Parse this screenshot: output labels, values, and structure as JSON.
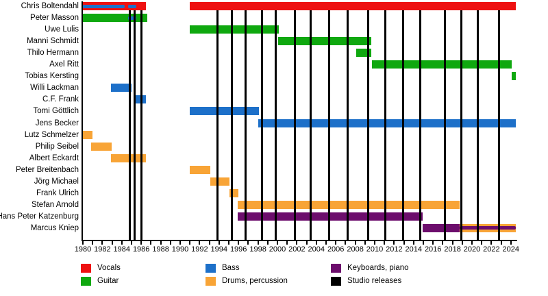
{
  "chart_data": {
    "type": "timeline",
    "description": "Band members timeline with studio release markers",
    "x_axis": {
      "start": 1980,
      "end": 2024.5,
      "minor_tick_step": 1,
      "label_step": 2,
      "tick_labels": [
        "1980",
        "1982",
        "1984",
        "1986",
        "1988",
        "1990",
        "1992",
        "1994",
        "1996",
        "1998",
        "2000",
        "2002",
        "2004",
        "2006",
        "2008",
        "2010",
        "2012",
        "2014",
        "2016",
        "2018",
        "2020",
        "2022",
        "2024"
      ]
    },
    "roles": {
      "vocals": {
        "label": "Vocals",
        "color": "#ee1111"
      },
      "guitar": {
        "label": "Guitar",
        "color": "#0fa80f"
      },
      "bass": {
        "label": "Bass",
        "color": "#1d70c9"
      },
      "drums": {
        "label": "Drums, percussion",
        "color": "#f8a436"
      },
      "keyboards": {
        "label": "Keyboards, piano",
        "color": "#6c0d6c"
      },
      "releases": {
        "label": "Studio releases",
        "color": "#000000"
      }
    },
    "members": [
      {
        "name": "Chris Boltendahl",
        "segments": [
          {
            "role": "vocals",
            "start": 1980,
            "end": 1986.5
          },
          {
            "role": "vocals",
            "start": 1991,
            "end": 2024.5
          }
        ],
        "overlays": [
          {
            "role": "bass",
            "start": 1980,
            "end": 1984.3
          },
          {
            "role": "bass",
            "start": 1984.65,
            "end": 1985.5
          }
        ]
      },
      {
        "name": "Peter Masson",
        "segments": [
          {
            "role": "guitar",
            "start": 1980,
            "end": 1986.6
          }
        ],
        "overlays": [
          {
            "role": "bass",
            "start": 1984.65,
            "end": 1985.5
          }
        ]
      },
      {
        "name": "Uwe Lulis",
        "segments": [
          {
            "role": "guitar",
            "start": 1991,
            "end": 2000.15
          }
        ],
        "overlays": []
      },
      {
        "name": "Manni Schmidt",
        "segments": [
          {
            "role": "guitar",
            "start": 2000.1,
            "end": 2009.65
          }
        ],
        "overlays": []
      },
      {
        "name": "Thilo Hermann",
        "segments": [
          {
            "role": "guitar",
            "start": 2008.1,
            "end": 2009.65
          }
        ],
        "overlays": []
      },
      {
        "name": "Axel Ritt",
        "segments": [
          {
            "role": "guitar",
            "start": 2009.7,
            "end": 2024.05
          }
        ],
        "overlays": []
      },
      {
        "name": "Tobias Kersting",
        "segments": [
          {
            "role": "guitar",
            "start": 2024.1,
            "end": 2024.5
          }
        ],
        "overlays": []
      },
      {
        "name": "Willi Lackman",
        "segments": [
          {
            "role": "bass",
            "start": 1982.9,
            "end": 1985.0
          }
        ],
        "overlays": []
      },
      {
        "name": "C.F. Frank",
        "segments": [
          {
            "role": "bass",
            "start": 1985.45,
            "end": 1986.5
          }
        ],
        "overlays": []
      },
      {
        "name": "Tomi Göttlich",
        "segments": [
          {
            "role": "bass",
            "start": 1991,
            "end": 1998.1
          }
        ],
        "overlays": []
      },
      {
        "name": "Jens Becker",
        "segments": [
          {
            "role": "bass",
            "start": 1998.05,
            "end": 2024.5
          }
        ],
        "overlays": []
      },
      {
        "name": "Lutz Schmelzer",
        "segments": [
          {
            "role": "drums",
            "start": 1980,
            "end": 1981
          }
        ],
        "overlays": []
      },
      {
        "name": "Philip Seibel",
        "segments": [
          {
            "role": "drums",
            "start": 1980.85,
            "end": 1982.95
          }
        ],
        "overlays": []
      },
      {
        "name": "Albert Eckardt",
        "segments": [
          {
            "role": "drums",
            "start": 1982.9,
            "end": 1986.5
          }
        ],
        "overlays": []
      },
      {
        "name": "Peter Breitenbach",
        "segments": [
          {
            "role": "drums",
            "start": 1991,
            "end": 1993.1
          }
        ],
        "overlays": []
      },
      {
        "name": "Jörg Michael",
        "segments": [
          {
            "role": "drums",
            "start": 1993.1,
            "end": 1995.1
          }
        ],
        "overlays": []
      },
      {
        "name": "Frank Ulrich",
        "segments": [
          {
            "role": "drums",
            "start": 1995.1,
            "end": 1996
          }
        ],
        "overlays": []
      },
      {
        "name": "Stefan Arnold",
        "segments": [
          {
            "role": "drums",
            "start": 1995.95,
            "end": 2018.7
          }
        ],
        "overlays": []
      },
      {
        "name": "Hans Peter Katzenburg",
        "segments": [
          {
            "role": "keyboards",
            "start": 1995.95,
            "end": 2014.9
          }
        ],
        "overlays": []
      },
      {
        "name": "Marcus Kniep",
        "segments": [
          {
            "role": "keyboards",
            "start": 2014.9,
            "end": 2018.7
          },
          {
            "role": "drums",
            "start": 2018.7,
            "end": 2024.5
          }
        ],
        "overlays": [
          {
            "role": "keyboards",
            "start": 2018.7,
            "end": 2024.5
          }
        ]
      }
    ],
    "releases": [
      1984.85,
      1985.35,
      1986.05,
      1993.85,
      1995.3,
      1996.7,
      1998.4,
      1999.8,
      2001.8,
      2003.4,
      2005.3,
      2007.2,
      2009.3,
      2011.1,
      2012.9,
      2014.7,
      2017.2,
      2018.9,
      2020.6,
      2022.8
    ],
    "legend_columns": [
      [
        "vocals",
        "guitar"
      ],
      [
        "bass",
        "drums"
      ],
      [
        "keyboards",
        "releases"
      ]
    ]
  }
}
